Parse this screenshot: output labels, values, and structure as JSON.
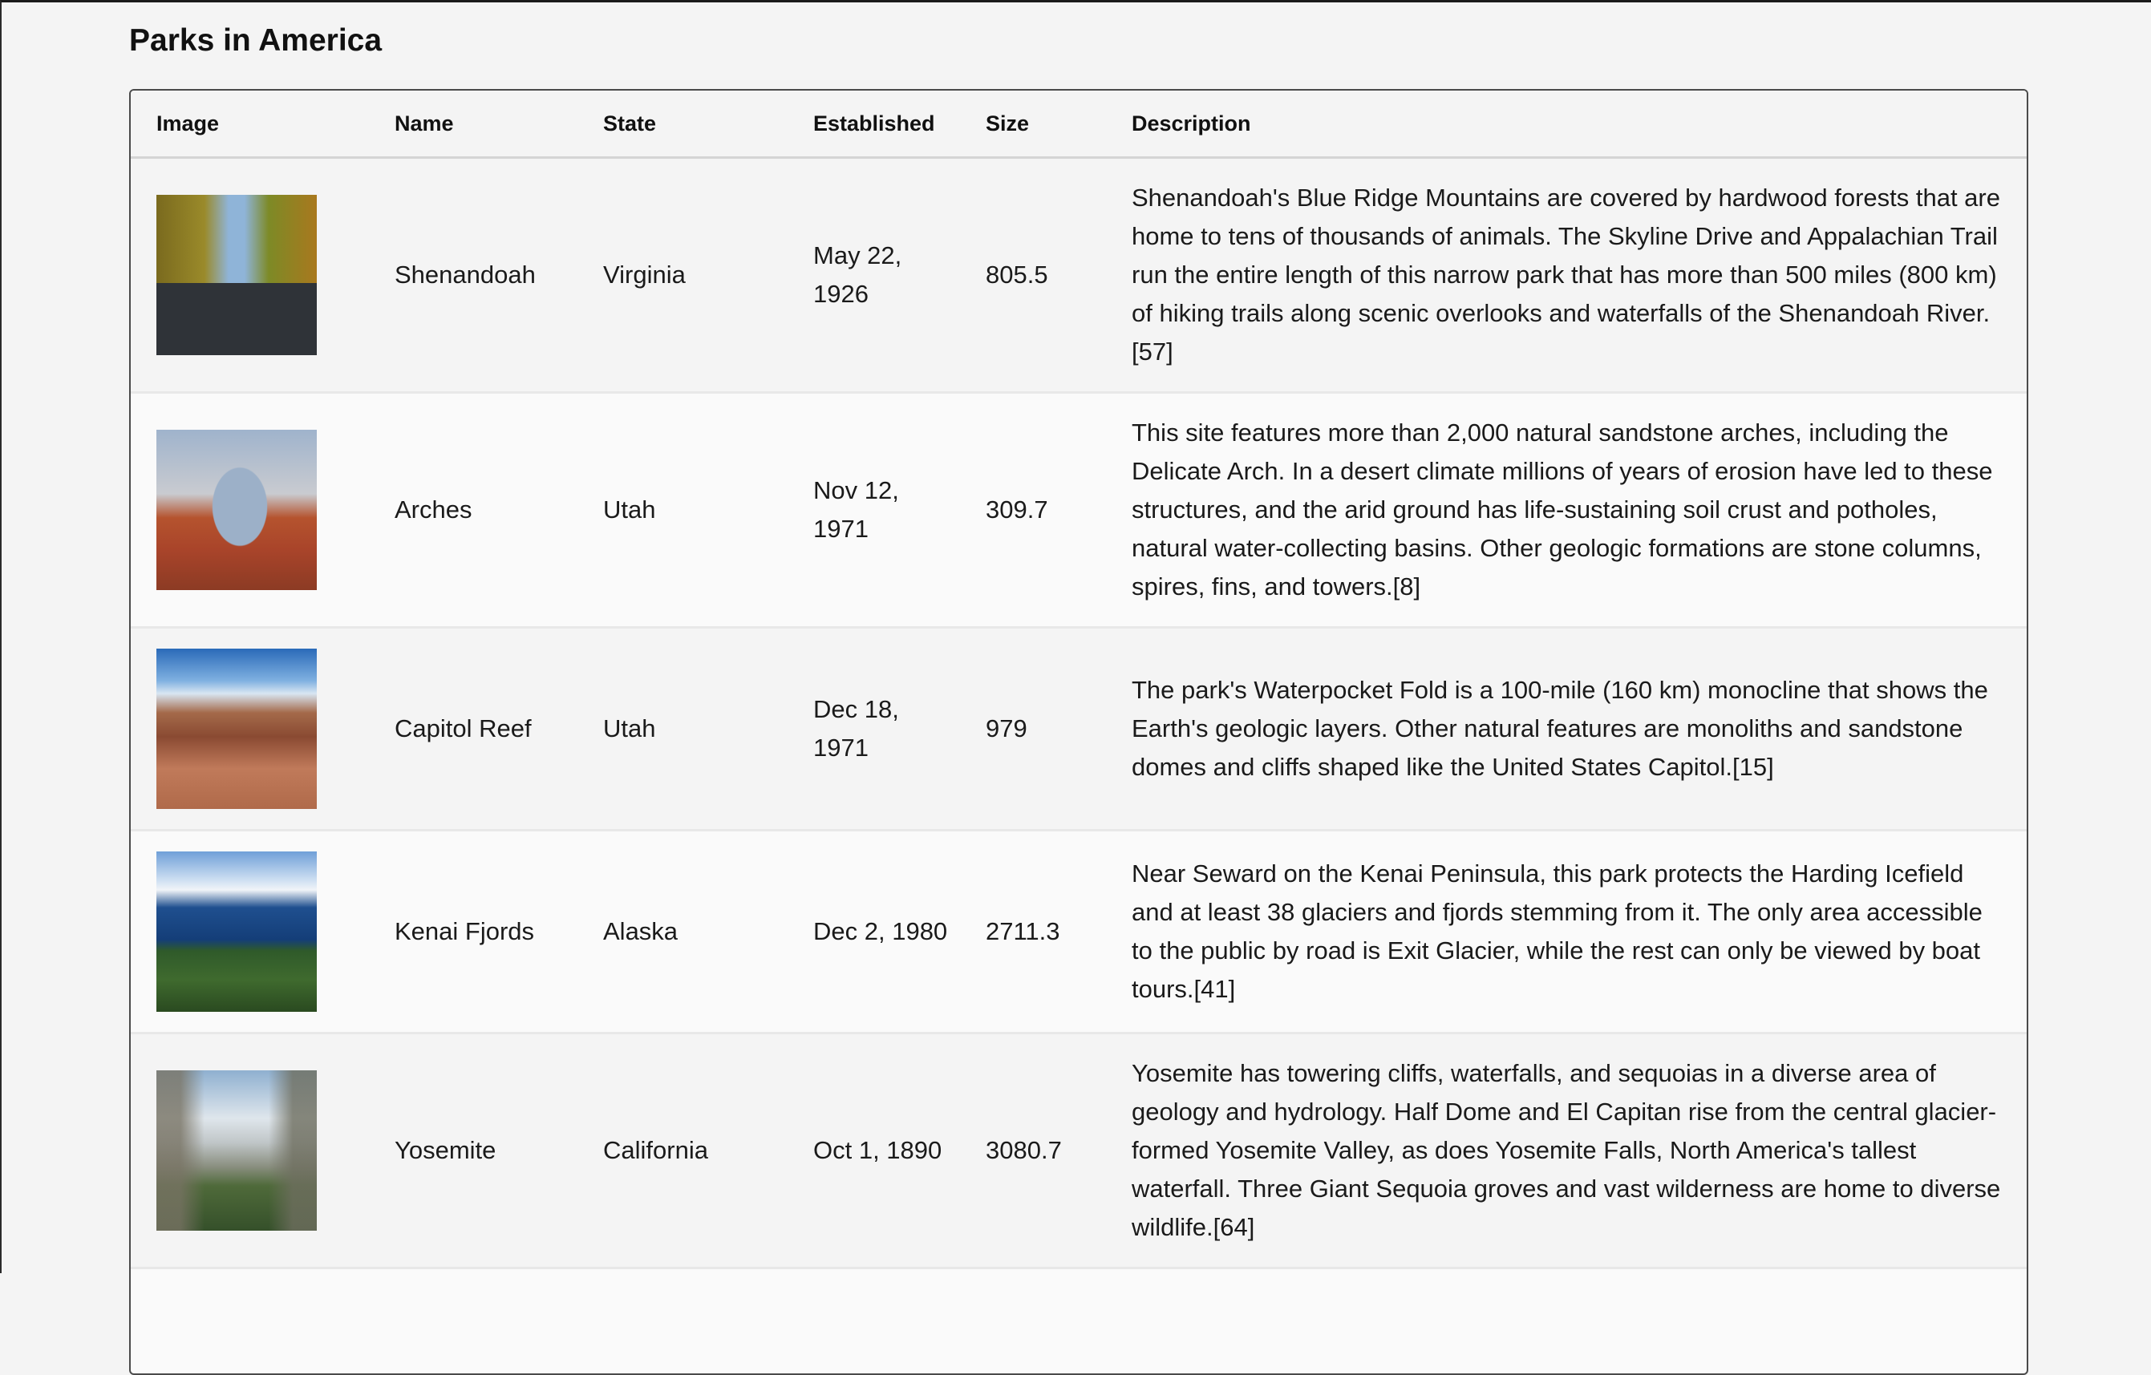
{
  "page": {
    "title": "Parks in America"
  },
  "table": {
    "headers": [
      "Image",
      "Name",
      "State",
      "Established",
      "Size",
      "Description"
    ],
    "rows": [
      {
        "image": "shenandoah-road-photo",
        "name": "Shenandoah",
        "state": "Virginia",
        "established": "May 22, 1926",
        "size": "805.5",
        "description": "Shenandoah's Blue Ridge Mountains are covered by hardwood forests that are home to tens of thousands of animals. The Skyline Drive and Appalachian Trail run the entire length of this narrow park that has more than 500 miles (800 km) of hiking trails along scenic overlooks and waterfalls of the Shenandoah River.[57]"
      },
      {
        "image": "arches-delicate-arch-photo",
        "name": "Arches",
        "state": "Utah",
        "established": "Nov 12, 1971",
        "size": "309.7",
        "description": "This site features more than 2,000 natural sandstone arches, including the Delicate Arch. In a desert climate millions of years of erosion have led to these structures, and the arid ground has life-sustaining soil crust and potholes, natural water-collecting basins. Other geologic formations are stone columns, spires, fins, and towers.[8]"
      },
      {
        "image": "capitol-reef-canyon-photo",
        "name": "Capitol Reef",
        "state": "Utah",
        "established": "Dec 18, 1971",
        "size": "979",
        "description": "The park's Waterpocket Fold is a 100-mile (160 km) monocline that shows the Earth's geologic layers. Other natural features are monoliths and sandstone domes and cliffs shaped like the United States Capitol.[15]"
      },
      {
        "image": "kenai-fjords-glacier-photo",
        "name": "Kenai Fjords",
        "state": "Alaska",
        "established": "Dec 2, 1980",
        "size": "2711.3",
        "description": "Near Seward on the Kenai Peninsula, this park protects the Harding Icefield and at least 38 glaciers and fjords stemming from it. The only area accessible to the public by road is Exit Glacier, while the rest can only be viewed by boat tours.[41]"
      },
      {
        "image": "yosemite-valley-photo",
        "name": "Yosemite",
        "state": "California",
        "established": "Oct 1, 1890",
        "size": "3080.7",
        "description": "Yosemite has towering cliffs, waterfalls, and sequoias in a diverse area of geology and hydrology. Half Dome and El Capitan rise from the central glacier-formed Yosemite Valley, as does Yosemite Falls, North America's tallest waterfall. Three Giant Sequoia groves and vast wilderness are home to diverse wildlife.[64]"
      }
    ]
  }
}
